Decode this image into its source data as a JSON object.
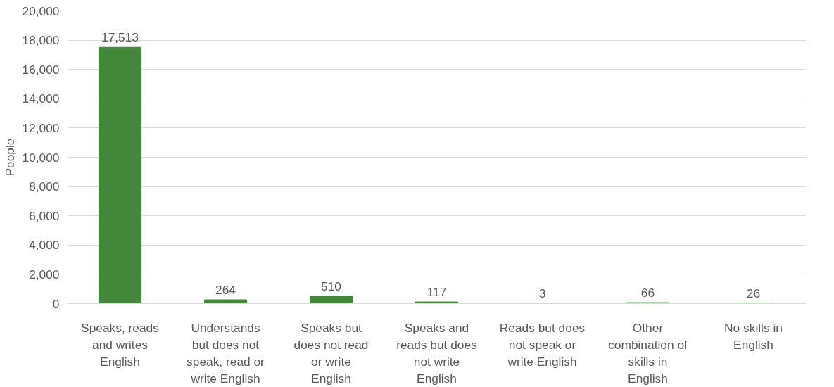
{
  "chart_data": {
    "type": "bar",
    "ylabel": "People",
    "categories": [
      "Speaks, reads and writes English",
      "Understands but does not speak, read or write English",
      "Speaks but does not read or write English",
      "Speaks and reads but does not write English",
      "Reads but does not speak or write English",
      "Other combination of skills in English",
      "No skills in English"
    ],
    "values": [
      17513,
      264,
      510,
      117,
      3,
      66,
      26
    ],
    "value_labels": [
      "17,513",
      "264",
      "510",
      "117",
      "3",
      "66",
      "26"
    ],
    "color": "#43873b",
    "grid": "y",
    "ylim": [
      0,
      20000
    ],
    "yticks": [
      {
        "value": 0,
        "label": "0"
      },
      {
        "value": 2000,
        "label": "2,000"
      },
      {
        "value": 4000,
        "label": "4,000"
      },
      {
        "value": 6000,
        "label": "6,000"
      },
      {
        "value": 8000,
        "label": "8,000"
      },
      {
        "value": 10000,
        "label": "10,000"
      },
      {
        "value": 12000,
        "label": "12,000"
      },
      {
        "value": 14000,
        "label": "14,000"
      },
      {
        "value": 16000,
        "label": "16,000"
      },
      {
        "value": 18000,
        "label": "18,000"
      },
      {
        "value": 20000,
        "label": "20,000"
      }
    ]
  }
}
